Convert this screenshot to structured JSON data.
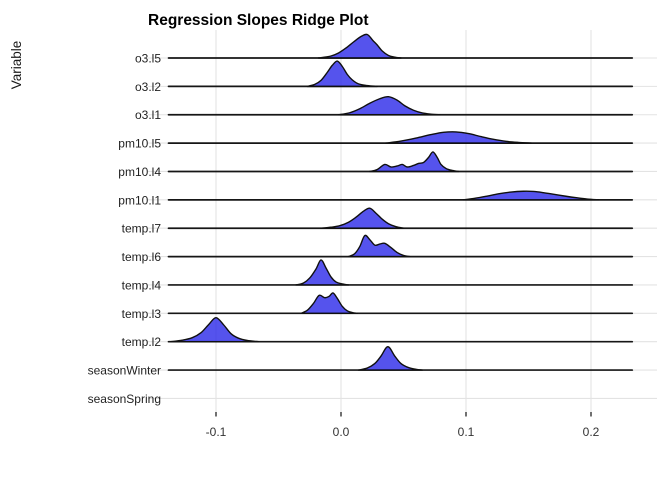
{
  "chart_data": {
    "type": "ridgeline",
    "title": "Regression Slopes Ridge Plot",
    "xlabel": "",
    "ylabel": "Variable",
    "legend": false,
    "grid": true,
    "height_unit": "px",
    "xlim": [
      -0.154,
      0.253
    ],
    "baseline_span": [
      -0.138,
      0.233
    ],
    "x_ticks": [
      {
        "label": "-0.1",
        "value": -0.1
      },
      {
        "label": "0.0",
        "value": 0.0
      },
      {
        "label": "0.1",
        "value": 0.1
      },
      {
        "label": "0.2",
        "value": 0.2
      }
    ],
    "colors": {
      "fill": "rgba(43,40,233,0.8)",
      "stroke": "#101010",
      "baseline": "#161616",
      "gridline": "#e3e3e3",
      "tick": "#333333"
    },
    "categories": [
      "o3.l5",
      "o3.l2",
      "o3.l1",
      "pm10.l5",
      "pm10.l4",
      "pm10.l1",
      "temp.l7",
      "temp.l6",
      "temp.l4",
      "temp.l3",
      "temp.l2",
      "seasonWinter",
      "seasonSpring"
    ],
    "series": [
      {
        "name": "o3.l5",
        "peak_x": 0.021,
        "points": [
          [
            -0.018,
            0
          ],
          [
            -0.008,
            2
          ],
          [
            -0.002,
            5
          ],
          [
            0.004,
            10
          ],
          [
            0.01,
            16
          ],
          [
            0.016,
            21.5
          ],
          [
            0.021,
            23.5
          ],
          [
            0.0255,
            17.5
          ],
          [
            0.029,
            13
          ],
          [
            0.033,
            7
          ],
          [
            0.038,
            2.5
          ],
          [
            0.043,
            0.8
          ],
          [
            0.048,
            0
          ]
        ]
      },
      {
        "name": "o3.l2",
        "peak_x": -0.003,
        "points": [
          [
            -0.027,
            0
          ],
          [
            -0.021,
            2
          ],
          [
            -0.016,
            6
          ],
          [
            -0.011,
            14
          ],
          [
            -0.007,
            21
          ],
          [
            -0.003,
            25.3
          ],
          [
            0.001,
            20
          ],
          [
            0.005,
            12
          ],
          [
            0.009,
            6.5
          ],
          [
            0.014,
            2.5
          ],
          [
            0.021,
            0.8
          ],
          [
            0.029,
            0
          ]
        ]
      },
      {
        "name": "o3.l1",
        "peak_x": 0.038,
        "points": [
          [
            -0.002,
            0
          ],
          [
            0.007,
            2
          ],
          [
            0.015,
            6
          ],
          [
            0.023,
            11.5
          ],
          [
            0.031,
            16
          ],
          [
            0.038,
            18
          ],
          [
            0.045,
            14.5
          ],
          [
            0.051,
            9
          ],
          [
            0.058,
            4.5
          ],
          [
            0.065,
            1.8
          ],
          [
            0.072,
            0.6
          ],
          [
            0.079,
            0
          ]
        ]
      },
      {
        "name": "pm10.l5",
        "peak_x": 0.092,
        "points": [
          [
            0.036,
            0
          ],
          [
            0.048,
            2
          ],
          [
            0.06,
            5
          ],
          [
            0.072,
            8.5
          ],
          [
            0.082,
            10.8
          ],
          [
            0.092,
            11.2
          ],
          [
            0.102,
            9.5
          ],
          [
            0.112,
            6.5
          ],
          [
            0.122,
            3.8
          ],
          [
            0.132,
            1.8
          ],
          [
            0.142,
            0.7
          ],
          [
            0.152,
            0
          ]
        ]
      },
      {
        "name": "pm10.l4",
        "peak_x": 0.073,
        "points": [
          [
            0.023,
            0
          ],
          [
            0.029,
            2
          ],
          [
            0.035,
            7
          ],
          [
            0.04,
            4.5
          ],
          [
            0.045,
            5.5
          ],
          [
            0.049,
            7
          ],
          [
            0.053,
            4.5
          ],
          [
            0.058,
            6
          ],
          [
            0.062,
            8
          ],
          [
            0.066,
            9
          ],
          [
            0.07,
            14
          ],
          [
            0.0735,
            19.5
          ],
          [
            0.077,
            14
          ],
          [
            0.08,
            7
          ],
          [
            0.084,
            3
          ],
          [
            0.089,
            1
          ],
          [
            0.094,
            0
          ]
        ]
      },
      {
        "name": "pm10.l1",
        "peak_x": 0.148,
        "points": [
          [
            0.098,
            0
          ],
          [
            0.107,
            1.5
          ],
          [
            0.116,
            3.5
          ],
          [
            0.126,
            6
          ],
          [
            0.136,
            7.8
          ],
          [
            0.146,
            8.6
          ],
          [
            0.154,
            8.4
          ],
          [
            0.162,
            7.2
          ],
          [
            0.171,
            5.4
          ],
          [
            0.18,
            3.6
          ],
          [
            0.189,
            2.0
          ],
          [
            0.197,
            0.8
          ],
          [
            0.206,
            0
          ]
        ]
      },
      {
        "name": "temp.l7",
        "peak_x": 0.023,
        "points": [
          [
            -0.016,
            0
          ],
          [
            -0.008,
            1
          ],
          [
            -0.001,
            2.5
          ],
          [
            0.006,
            6
          ],
          [
            0.012,
            11
          ],
          [
            0.018,
            17
          ],
          [
            0.023,
            20
          ],
          [
            0.028,
            15
          ],
          [
            0.033,
            9
          ],
          [
            0.038,
            4.5
          ],
          [
            0.044,
            1.5
          ],
          [
            0.05,
            0
          ]
        ]
      },
      {
        "name": "temp.l6",
        "peak_x": 0.019,
        "points": [
          [
            0.006,
            0
          ],
          [
            0.011,
            3
          ],
          [
            0.015,
            10
          ],
          [
            0.019,
            21
          ],
          [
            0.023,
            17
          ],
          [
            0.027,
            11.5
          ],
          [
            0.031,
            12.5
          ],
          [
            0.035,
            13.3
          ],
          [
            0.04,
            9
          ],
          [
            0.045,
            4
          ],
          [
            0.05,
            1.2
          ],
          [
            0.055,
            0
          ]
        ]
      },
      {
        "name": "temp.l4",
        "peak_x": -0.016,
        "points": [
          [
            -0.036,
            0
          ],
          [
            -0.03,
            2
          ],
          [
            -0.025,
            7
          ],
          [
            -0.02,
            16
          ],
          [
            -0.016,
            25
          ],
          [
            -0.012,
            17
          ],
          [
            -0.008,
            8
          ],
          [
            -0.004,
            3
          ],
          [
            0.001,
            1
          ],
          [
            0.006,
            0
          ]
        ]
      },
      {
        "name": "temp.l3",
        "peak_x": -0.006,
        "points": [
          [
            -0.032,
            0
          ],
          [
            -0.027,
            3
          ],
          [
            -0.022,
            10
          ],
          [
            -0.0175,
            18
          ],
          [
            -0.013,
            15.6
          ],
          [
            -0.0095,
            17
          ],
          [
            -0.0064,
            20.4
          ],
          [
            -0.003,
            15
          ],
          [
            0.001,
            7
          ],
          [
            0.005,
            2.5
          ],
          [
            0.009,
            0.8
          ],
          [
            0.013,
            0
          ]
        ]
      },
      {
        "name": "temp.l2",
        "peak_x": -0.1,
        "points": [
          [
            -0.136,
            0
          ],
          [
            -0.127,
            1.5
          ],
          [
            -0.119,
            4
          ],
          [
            -0.112,
            9
          ],
          [
            -0.106,
            17
          ],
          [
            -0.1,
            24
          ],
          [
            -0.094,
            17
          ],
          [
            -0.088,
            8
          ],
          [
            -0.082,
            3.5
          ],
          [
            -0.075,
            1.2
          ],
          [
            -0.066,
            0
          ]
        ]
      },
      {
        "name": "seasonWinter",
        "peak_x": 0.038,
        "points": [
          [
            0.014,
            0
          ],
          [
            0.021,
            2
          ],
          [
            0.027,
            6.5
          ],
          [
            0.032,
            14
          ],
          [
            0.0375,
            23.4
          ],
          [
            0.043,
            14
          ],
          [
            0.048,
            6.5
          ],
          [
            0.054,
            2.5
          ],
          [
            0.06,
            0.8
          ],
          [
            0.065,
            0
          ]
        ]
      },
      {
        "name": "seasonSpring",
        "peak_x": null,
        "points": []
      }
    ]
  }
}
